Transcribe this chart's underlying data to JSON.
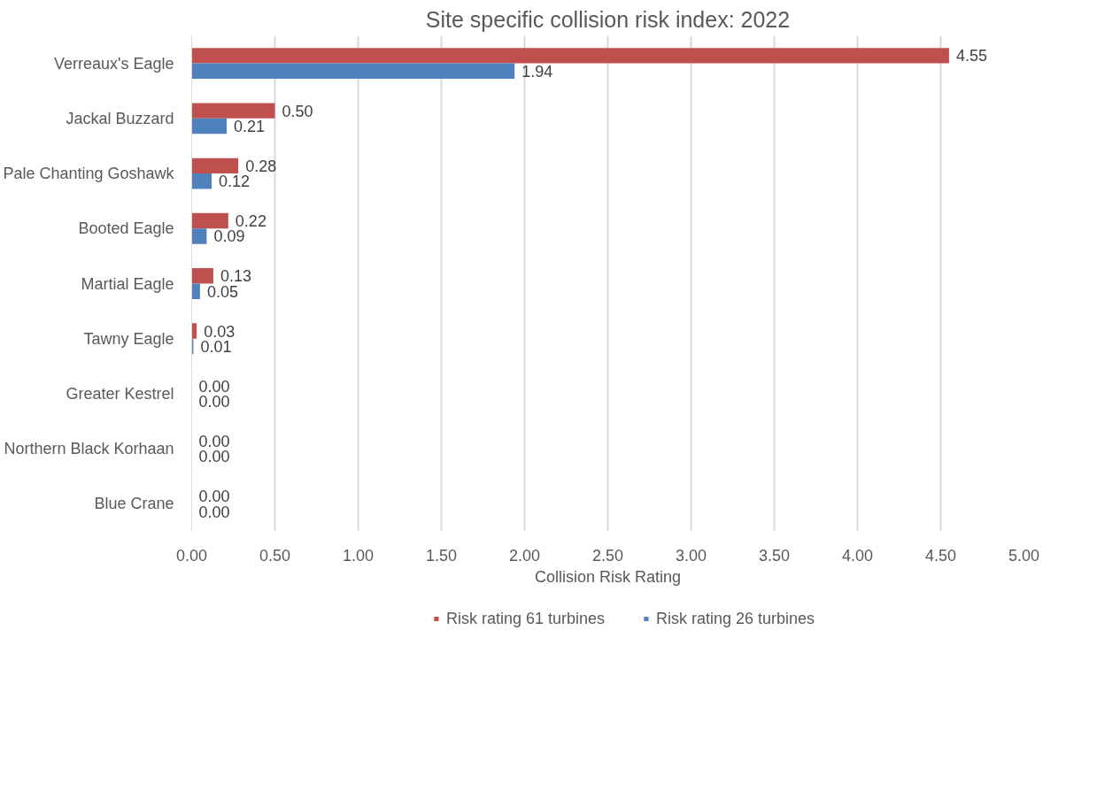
{
  "chart_data": {
    "type": "bar",
    "orientation": "horizontal",
    "title": "Site specific collision risk index: 2022",
    "xlabel": "Collision Risk Rating",
    "categories": [
      "Verreaux's Eagle",
      "Jackal Buzzard",
      "Pale Chanting Goshawk",
      "Booted Eagle",
      "Martial Eagle",
      "Tawny Eagle",
      "Greater Kestrel",
      "Northern Black Korhaan",
      "Blue Crane"
    ],
    "series": [
      {
        "name": "Risk rating 61 turbines",
        "color": "#c0504d",
        "values": [
          4.55,
          0.5,
          0.28,
          0.22,
          0.13,
          0.03,
          0,
          0,
          0
        ],
        "value_labels": [
          "4.55",
          "0.50",
          "0.28",
          "0.22",
          "0.13",
          "0.03",
          "0.00",
          "0.00",
          "0.00"
        ]
      },
      {
        "name": "Risk rating 26 turbines",
        "color": "#4f81bd",
        "values": [
          1.94,
          0.21,
          0.12,
          0.09,
          0.05,
          0.01,
          0,
          0,
          0
        ],
        "value_labels": [
          "1.94",
          "0.21",
          "0.12",
          "0.09",
          "0.05",
          "0.01",
          "0.00",
          "0.00",
          "0.00"
        ]
      }
    ],
    "xlim": [
      0,
      5
    ],
    "xticks": [
      {
        "value": 0,
        "label": "0.00"
      },
      {
        "value": 0.5,
        "label": "0.50"
      },
      {
        "value": 1,
        "label": "1.00"
      },
      {
        "value": 1.5,
        "label": "1.50"
      },
      {
        "value": 2,
        "label": "2.00"
      },
      {
        "value": 2.5,
        "label": "2.50"
      },
      {
        "value": 3,
        "label": "3.00"
      },
      {
        "value": 3.5,
        "label": "3.50"
      },
      {
        "value": 4,
        "label": "4.00"
      },
      {
        "value": 4.5,
        "label": "4.50"
      },
      {
        "value": 5,
        "label": "5.00"
      }
    ],
    "grid": "x",
    "legend": "bottom"
  }
}
